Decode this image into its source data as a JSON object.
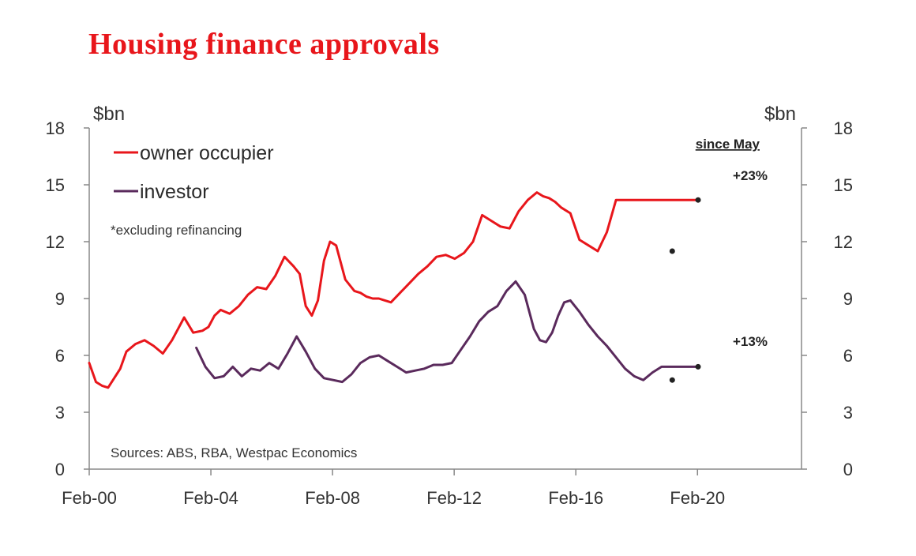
{
  "chart_data": {
    "type": "line",
    "title": "Housing finance approvals",
    "y_unit_left": "$bn",
    "y_unit_right": "$bn",
    "ylim": [
      0,
      18
    ],
    "yticks": [
      0,
      3,
      6,
      9,
      12,
      15,
      18
    ],
    "xlim": [
      2000.08,
      2023.5
    ],
    "xticks": [
      {
        "value": 2000.08,
        "label": "Feb-00"
      },
      {
        "value": 2004.08,
        "label": "Feb-04"
      },
      {
        "value": 2008.08,
        "label": "Feb-08"
      },
      {
        "value": 2012.08,
        "label": "Feb-12"
      },
      {
        "value": 2016.08,
        "label": "Feb-16"
      },
      {
        "value": 2020.08,
        "label": "Feb-20"
      }
    ],
    "grid": false,
    "legend_position": "top-left",
    "note": "*excluding refinancing",
    "source": "Sources: ABS, RBA, Westpac Economics",
    "annotation_header": "since May",
    "series": [
      {
        "name": "owner occupier",
        "color": "#e8161b",
        "x": [
          2000.08,
          2000.3,
          2000.5,
          2000.7,
          2000.9,
          2001.1,
          2001.3,
          2001.6,
          2001.9,
          2002.2,
          2002.5,
          2002.8,
          2003.0,
          2003.2,
          2003.5,
          2003.8,
          2004.0,
          2004.2,
          2004.4,
          2004.7,
          2005.0,
          2005.3,
          2005.6,
          2005.9,
          2006.2,
          2006.5,
          2006.8,
          2007.0,
          2007.2,
          2007.4,
          2007.6,
          2007.8,
          2008.0,
          2008.2,
          2008.5,
          2008.8,
          2009.0,
          2009.2,
          2009.4,
          2009.6,
          2009.8,
          2010.0,
          2010.3,
          2010.6,
          2010.9,
          2011.2,
          2011.5,
          2011.8,
          2012.1,
          2012.4,
          2012.7,
          2013.0,
          2013.3,
          2013.6,
          2013.9,
          2014.2,
          2014.5,
          2014.8,
          2015.0,
          2015.2,
          2015.4,
          2015.6,
          2015.9,
          2016.2,
          2016.5,
          2016.8,
          2017.1,
          2017.4,
          2017.7,
          2018.0,
          2018.3,
          2018.6,
          2018.9,
          2019.1,
          2019.3,
          2019.5,
          2019.7,
          2019.9,
          2020.1
        ],
        "y": [
          5.6,
          4.6,
          4.4,
          4.3,
          4.8,
          5.3,
          6.2,
          6.6,
          6.8,
          6.5,
          6.1,
          6.8,
          7.4,
          8.0,
          7.2,
          7.3,
          7.5,
          8.1,
          8.4,
          8.2,
          8.6,
          9.2,
          9.6,
          9.5,
          10.2,
          11.2,
          10.7,
          10.3,
          8.6,
          8.1,
          8.9,
          11.0,
          12.0,
          11.8,
          10.0,
          9.4,
          9.3,
          9.1,
          9.0,
          9.0,
          8.9,
          8.8,
          9.3,
          9.8,
          10.3,
          10.7,
          11.2,
          11.3,
          11.1,
          11.4,
          12.0,
          13.4,
          13.1,
          12.8,
          12.7,
          13.6,
          14.2,
          14.6,
          14.4,
          14.3,
          14.1,
          13.8,
          13.5,
          12.1,
          11.8,
          11.5,
          12.5,
          14.2,
          14.2,
          14.2,
          14.2,
          14.2,
          14.2,
          14.2,
          14.2,
          14.2,
          14.2,
          14.2,
          14.2
        ],
        "change_since_may": "+23%"
      },
      {
        "name": "investor",
        "color": "#5a2a5c",
        "x": [
          2003.6,
          2003.9,
          2004.2,
          2004.5,
          2004.8,
          2005.1,
          2005.4,
          2005.7,
          2006.0,
          2006.3,
          2006.6,
          2006.9,
          2007.2,
          2007.5,
          2007.8,
          2008.1,
          2008.4,
          2008.7,
          2009.0,
          2009.3,
          2009.6,
          2009.9,
          2010.2,
          2010.5,
          2010.8,
          2011.1,
          2011.4,
          2011.7,
          2012.0,
          2012.3,
          2012.6,
          2012.9,
          2013.2,
          2013.5,
          2013.8,
          2014.1,
          2014.4,
          2014.7,
          2014.9,
          2015.1,
          2015.3,
          2015.5,
          2015.7,
          2015.9,
          2016.2,
          2016.5,
          2016.8,
          2017.1,
          2017.4,
          2017.7,
          2018.0,
          2018.3,
          2018.6,
          2018.9,
          2019.2,
          2019.5,
          2019.8,
          2020.1
        ],
        "y": [
          6.4,
          5.4,
          4.8,
          4.9,
          5.4,
          4.9,
          5.3,
          5.2,
          5.6,
          5.3,
          6.1,
          7.0,
          6.2,
          5.3,
          4.8,
          4.7,
          4.6,
          5.0,
          5.6,
          5.9,
          6.0,
          5.7,
          5.4,
          5.1,
          5.2,
          5.3,
          5.5,
          5.5,
          5.6,
          6.3,
          7.0,
          7.8,
          8.3,
          8.6,
          9.4,
          9.9,
          9.2,
          7.4,
          6.8,
          6.7,
          7.2,
          8.1,
          8.8,
          8.9,
          8.3,
          7.6,
          7.0,
          6.5,
          5.9,
          5.3,
          4.9,
          4.7,
          5.1,
          5.4,
          5.4,
          5.4,
          5.4,
          5.4
        ],
        "change_since_may": "+13%"
      }
    ]
  }
}
